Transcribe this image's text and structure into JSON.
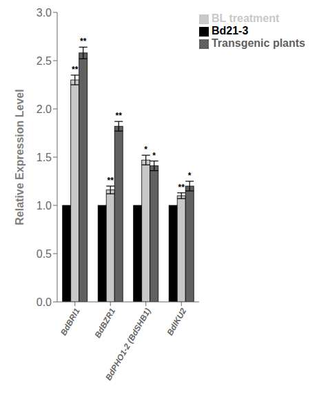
{
  "chart_data": {
    "type": "bar",
    "categories": [
      "BdBRI1",
      "BdBZR1",
      "BdPHO1-2 (BdSHB1)",
      "BdIKU2"
    ],
    "series": [
      {
        "name": "Bd21-3",
        "color": "#000000",
        "values": [
          1.0,
          1.0,
          1.0,
          1.0
        ],
        "errors": [
          0.0,
          0.0,
          0.0,
          0.0
        ]
      },
      {
        "name": "BL treatment",
        "color": "#c8c8c8",
        "values": [
          2.3,
          1.16,
          1.47,
          1.1
        ],
        "errors": [
          0.05,
          0.04,
          0.05,
          0.03
        ],
        "annotations": [
          "**",
          "**",
          "*",
          "**"
        ]
      },
      {
        "name": "Transgenic plants",
        "color": "#606060",
        "values": [
          2.58,
          1.82,
          1.41,
          1.2
        ],
        "errors": [
          0.06,
          0.05,
          0.05,
          0.05
        ],
        "annotations": [
          "**",
          "**",
          "*",
          "*"
        ]
      }
    ],
    "ylabel": "Relative Expression Level",
    "ylim": [
      0.0,
      3.0
    ],
    "yticks": [
      {
        "value": 0.0,
        "label": "0.0"
      },
      0.5,
      {
        "value": 1.0,
        "label": "1.0"
      },
      1.5,
      {
        "value": 2.0,
        "label": "2.0"
      },
      2.5,
      {
        "value": 3.0,
        "label": "3.0"
      }
    ],
    "legend": "upper right",
    "grid": false
  }
}
